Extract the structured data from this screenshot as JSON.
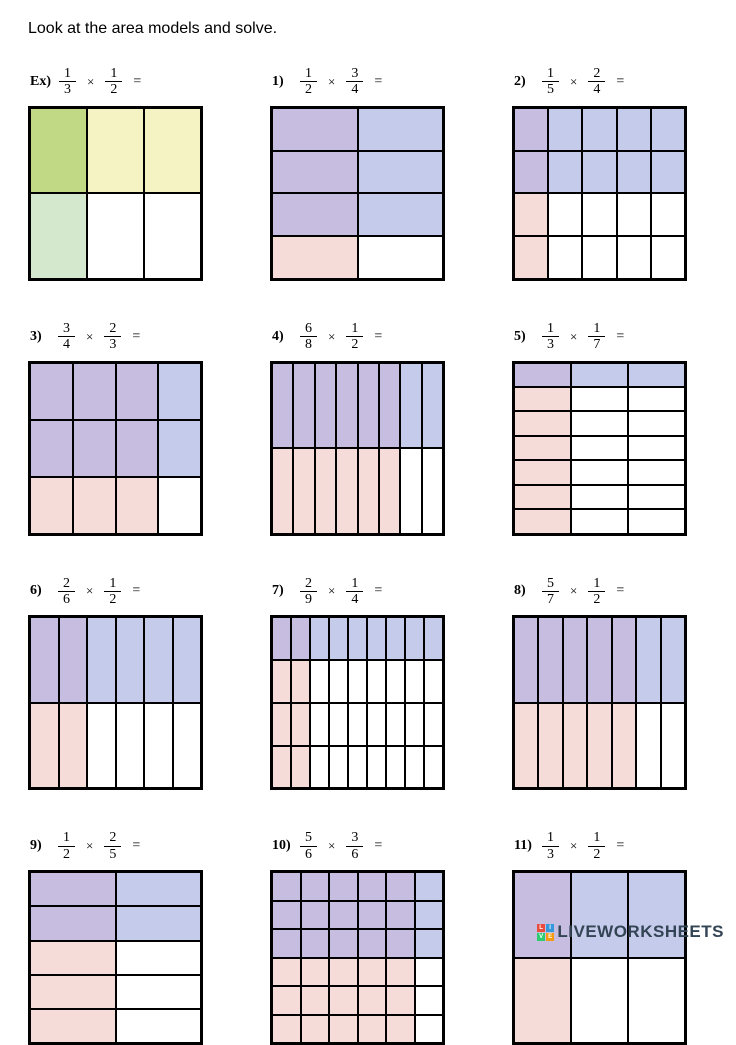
{
  "instruction": "Look at the area models and solve.",
  "colors": {
    "overlap": "#c6bde0",
    "blue": "#c5cceb",
    "pink": "#f5dcd9",
    "white": "#ffffff",
    "ex_overlap": "#c1d885",
    "ex_yellow": "#f5f2c4",
    "ex_green": "#d4e8cd",
    "border": "#000000"
  },
  "grid_size": 175,
  "watermark": "LIVEWORKSHEETS",
  "problems": [
    {
      "label": "Ex)",
      "n1": "1",
      "d1": "3",
      "n2": "1",
      "d2": "2",
      "cols": 3,
      "rows": 2,
      "example": true
    },
    {
      "label": "1)",
      "n1": "1",
      "d1": "2",
      "n2": "3",
      "d2": "4",
      "cols": 2,
      "rows": 4
    },
    {
      "label": "2)",
      "n1": "1",
      "d1": "5",
      "n2": "2",
      "d2": "4",
      "cols": 5,
      "rows": 4
    },
    {
      "label": "3)",
      "n1": "3",
      "d1": "4",
      "n2": "2",
      "d2": "3",
      "cols": 4,
      "rows": 3
    },
    {
      "label": "4)",
      "n1": "6",
      "d1": "8",
      "n2": "1",
      "d2": "2",
      "cols": 8,
      "rows": 2
    },
    {
      "label": "5)",
      "n1": "1",
      "d1": "3",
      "n2": "1",
      "d2": "7",
      "cols": 3,
      "rows": 7
    },
    {
      "label": "6)",
      "n1": "2",
      "d1": "6",
      "n2": "1",
      "d2": "2",
      "cols": 6,
      "rows": 2
    },
    {
      "label": "7)",
      "n1": "2",
      "d1": "9",
      "n2": "1",
      "d2": "4",
      "cols": 9,
      "rows": 4
    },
    {
      "label": "8)",
      "n1": "5",
      "d1": "7",
      "n2": "1",
      "d2": "2",
      "cols": 7,
      "rows": 2
    },
    {
      "label": "9)",
      "n1": "1",
      "d1": "2",
      "n2": "2",
      "d2": "5",
      "cols": 2,
      "rows": 5
    },
    {
      "label": "10)",
      "n1": "5",
      "d1": "6",
      "n2": "3",
      "d2": "6",
      "cols": 6,
      "rows": 6
    },
    {
      "label": "11)",
      "n1": "1",
      "d1": "3",
      "n2": "1",
      "d2": "2",
      "cols": 3,
      "rows": 2
    }
  ]
}
